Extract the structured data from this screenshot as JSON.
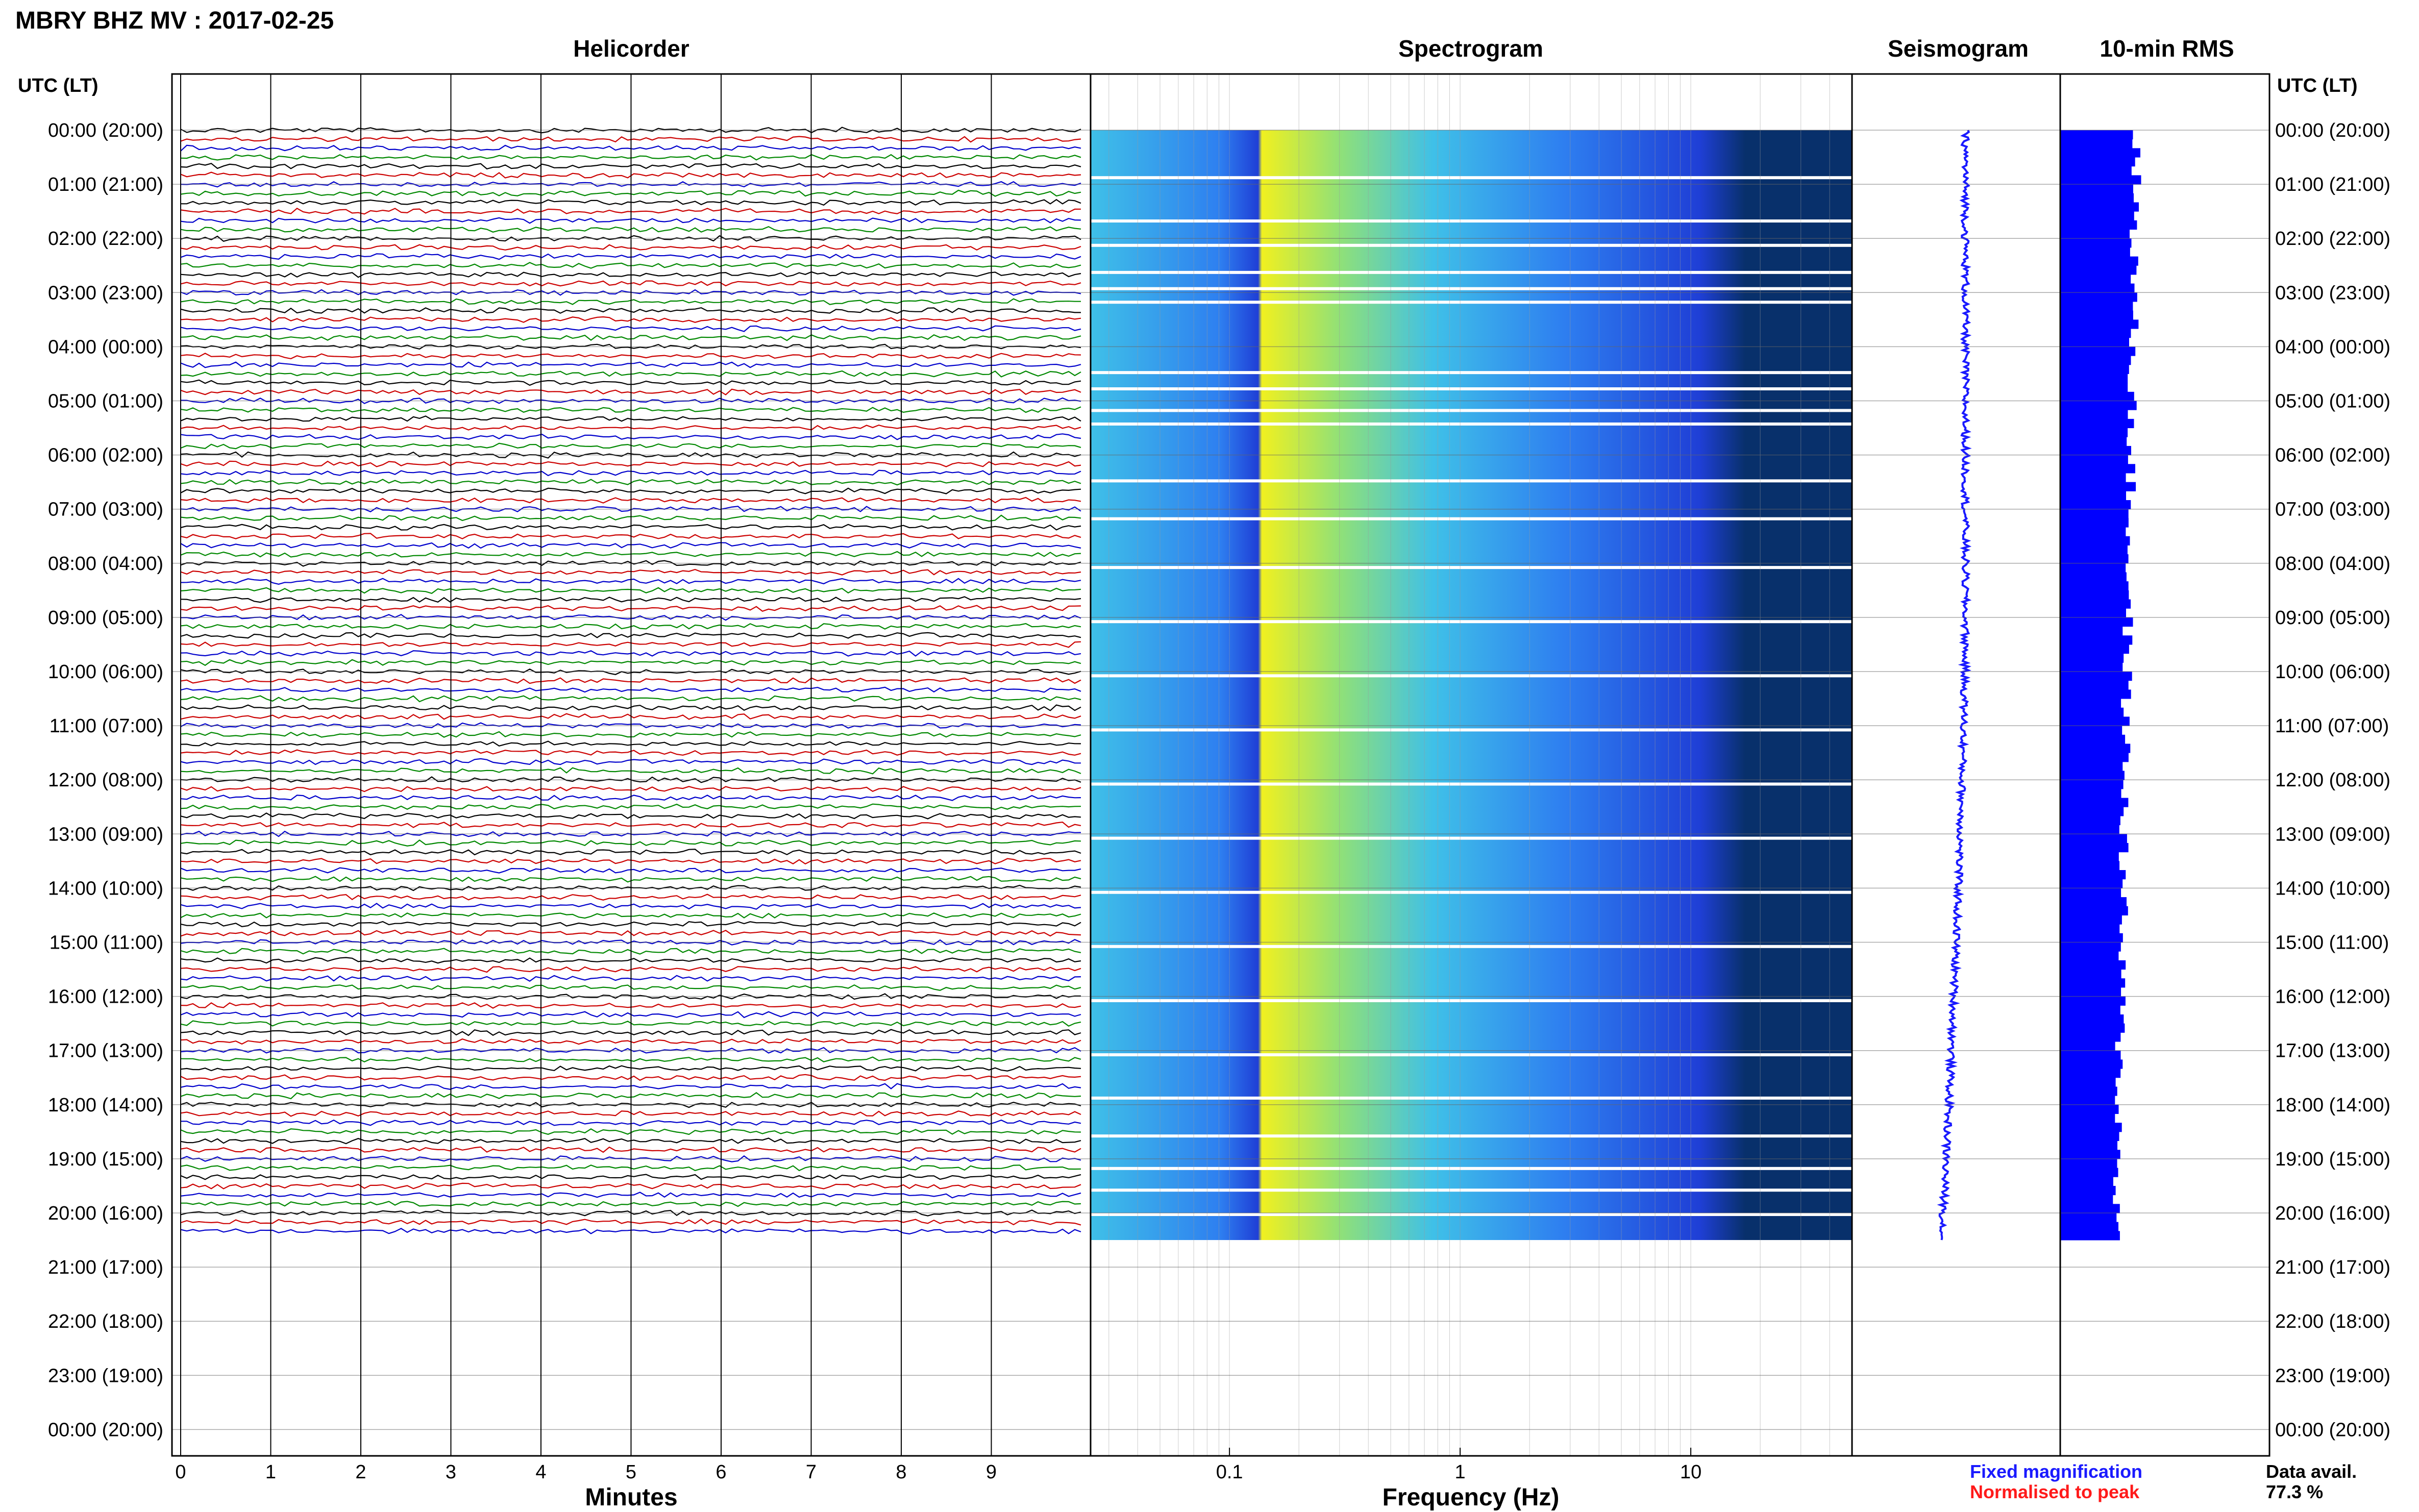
{
  "page": {
    "title": "MBRY BHZ MV : 2017-02-25",
    "data_avail_label": "Data avail.",
    "data_avail_value": "77.3 %",
    "legend": [
      {
        "label": "Fixed magnification",
        "color": "#1a1aff"
      },
      {
        "label": "Normalised to peak",
        "color": "#ff1a1a"
      }
    ]
  },
  "chart_data": [
    {
      "type": "line",
      "title": "Helicorder",
      "xlabel": "Minutes",
      "ylabel": "UTC (LT)",
      "xlim": [
        0,
        10
      ],
      "x_ticks": [
        "0",
        "1",
        "2",
        "3",
        "4",
        "5",
        "6",
        "7",
        "8",
        "9"
      ],
      "row_labels": [
        "00:00 (20:00)",
        "01:00 (21:00)",
        "02:00 (22:00)",
        "03:00 (23:00)",
        "04:00 (00:00)",
        "05:00 (01:00)",
        "06:00 (02:00)",
        "07:00 (03:00)",
        "08:00 (04:00)",
        "09:00 (05:00)",
        "10:00 (06:00)",
        "11:00 (07:00)",
        "12:00 (08:00)",
        "13:00 (09:00)",
        "14:00 (10:00)",
        "15:00 (11:00)",
        "16:00 (12:00)",
        "17:00 (13:00)",
        "18:00 (14:00)",
        "19:00 (15:00)",
        "20:00 (16:00)",
        "21:00 (17:00)",
        "22:00 (18:00)",
        "23:00 (19:00)",
        "00:00 (20:00)"
      ],
      "trace_colors": [
        "#000000",
        "#cc0000",
        "#0000cc",
        "#008800"
      ],
      "traces_per_hour": 6,
      "data_end_hour": 20.5
    },
    {
      "type": "heatmap",
      "title": "Spectrogram",
      "xlabel": "Frequency (Hz)",
      "x_scale": "log",
      "xlim": [
        0.025,
        50
      ],
      "x_ticks": [
        "0.1",
        "1",
        "10"
      ],
      "colormap": [
        "#08306b",
        "#1f3fd6",
        "#2e7ff0",
        "#3fc0e8",
        "#8ee07a",
        "#f0f020"
      ],
      "data_end_hour": 20.5
    },
    {
      "type": "line",
      "title": "Seismogram",
      "color": "#1a1aff",
      "data_end_hour": 20.5
    },
    {
      "type": "bar",
      "title": "10-min RMS",
      "color": "#0000ff",
      "ylabel": "UTC (LT)",
      "data_end_hour": 20.5
    }
  ]
}
